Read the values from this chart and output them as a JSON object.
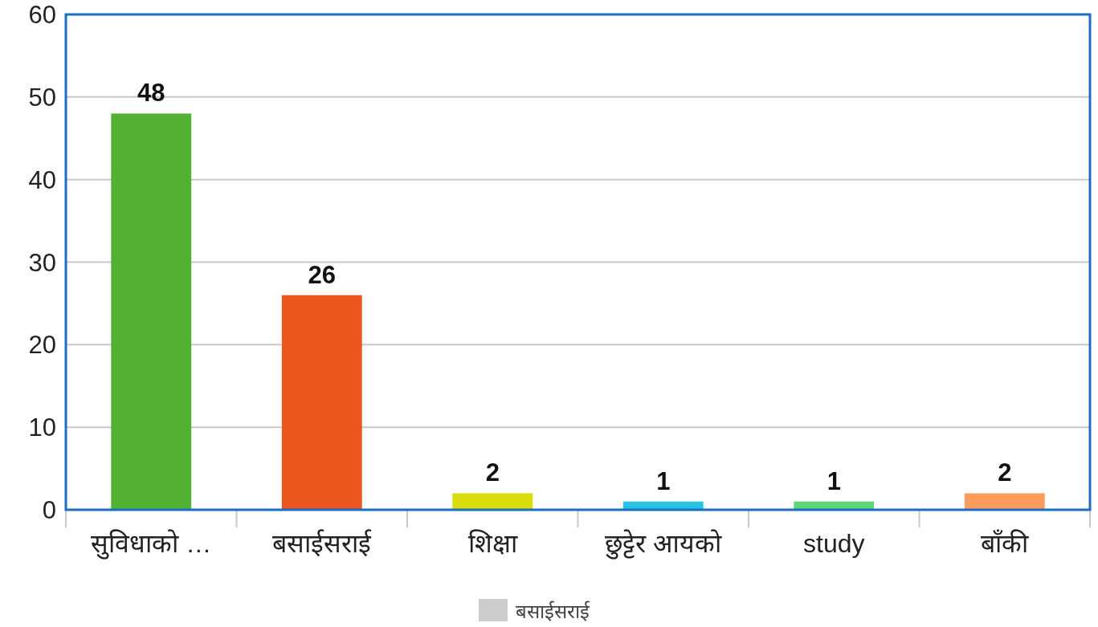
{
  "chart_data": {
    "type": "bar",
    "categories": [
      "सुविधाको …",
      "बसाईसराई",
      "शिक्षा",
      "छुट्टेर आयको",
      "study",
      "बाँकी"
    ],
    "series": [
      {
        "name": "बसाईसराई",
        "color": "#cccccc",
        "colors": [
          "#52b132",
          "#ea561e",
          "#d9dd0a",
          "#29c3e6",
          "#5ed676",
          "#fc9b5c"
        ],
        "values": [
          48,
          26,
          2,
          1,
          1,
          2
        ]
      }
    ],
    "ylim": [
      0,
      60
    ],
    "yticks": [
      0,
      10,
      20,
      30,
      40,
      50,
      60
    ],
    "grid": "y",
    "data_labels": true,
    "legend": "bottom"
  }
}
